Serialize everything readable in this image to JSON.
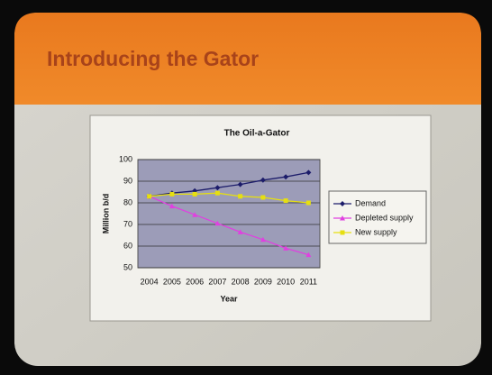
{
  "slide": {
    "title": "Introducing the Gator"
  },
  "chart_data": {
    "type": "line",
    "title": "The Oil-a-Gator",
    "x_label": "Year",
    "y_label": "Million b/d",
    "categories": [
      "2004",
      "2005",
      "2006",
      "2007",
      "2008",
      "2009",
      "2010",
      "2011"
    ],
    "series": [
      {
        "name": "Demand",
        "color": "#1c1c6a",
        "values": [
          83,
          84.5,
          85.5,
          87,
          88.5,
          90.5,
          92,
          94
        ]
      },
      {
        "name": "Depleted supply",
        "color": "#e040e0",
        "values": [
          83,
          78.5,
          74.5,
          70.5,
          66.5,
          63,
          59,
          56
        ]
      },
      {
        "name": "New supply",
        "color": "#e6df10",
        "values": [
          83,
          84,
          84,
          84.5,
          83,
          82.5,
          81,
          80
        ]
      }
    ],
    "ylim": [
      50,
      100
    ],
    "yticks": [
      50,
      60,
      70,
      80,
      90,
      100
    ],
    "grid": true,
    "legend": "right"
  }
}
